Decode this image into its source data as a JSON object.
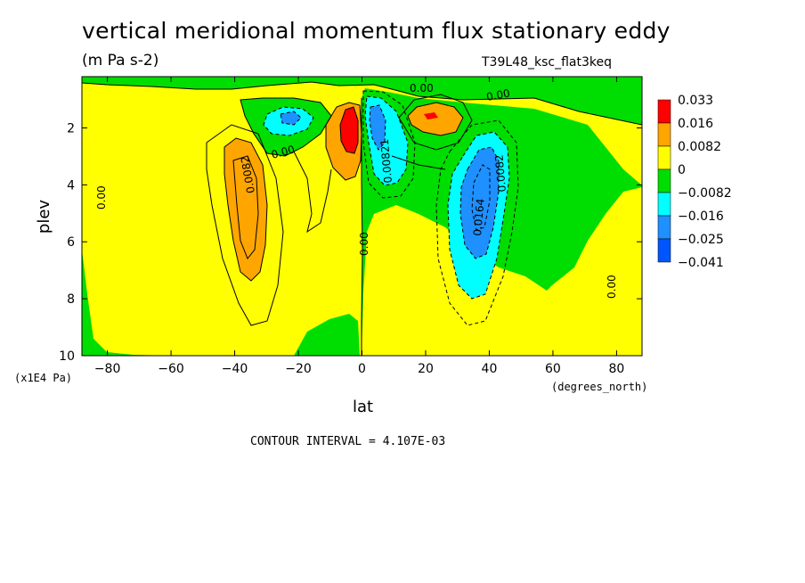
{
  "header": {
    "title": "vertical meridional momentum flux stationary eddy",
    "units": "(m Pa s-2)",
    "run_id": "T39L48_ksc_flat3keq"
  },
  "footer": {
    "contour_interval": "CONTOUR INTERVAL = 4.107E-03"
  },
  "chart_data": {
    "type": "heatmap",
    "title": "vertical meridional momentum flux stationary eddy",
    "subtitle": "(m Pa s-2)",
    "xlabel": "lat",
    "xunit": "(degrees_north)",
    "ylabel": "plev",
    "yunit": "(x1E4 Pa)",
    "xlim": [
      -88,
      88
    ],
    "ylim": [
      10,
      0.2
    ],
    "xticks": [
      -80,
      -60,
      -40,
      -20,
      0,
      20,
      40,
      60,
      80
    ],
    "yticks": [
      2,
      4,
      6,
      8,
      10
    ],
    "legend": {
      "placement": "right",
      "levels": [
        "0.033",
        "0.016",
        "0.0082",
        "0",
        "-0.0082",
        "-0.016",
        "-0.025",
        "-0.041"
      ],
      "colors": [
        "#ff0000",
        "#ffa500",
        "#ffff00",
        "#00dd00",
        "#00ffff",
        "#1e90ff",
        "#0055ff"
      ]
    },
    "features": [
      {
        "type": "max",
        "lat": -35,
        "plev": 5.0,
        "label": "0.0082",
        "level": "orange"
      },
      {
        "type": "max",
        "lat": -5,
        "plev": 2.0,
        "label": "",
        "level": "red"
      },
      {
        "type": "max",
        "lat": 22,
        "plev": 1.5,
        "label": "",
        "level": "red"
      },
      {
        "type": "min",
        "lat": 4,
        "plev": 2.3,
        "label": "0.00821",
        "level": "blue"
      },
      {
        "type": "min",
        "lat": 36,
        "plev": 4.5,
        "label": "0.0164",
        "level": "blue"
      },
      {
        "type": "min",
        "lat": -18,
        "plev": 1.8,
        "label": "",
        "level": "cyan"
      }
    ],
    "contour_labels": [
      "0.00",
      "0.00",
      "0.00",
      "0.00",
      "0.00",
      "0.00",
      "0.00",
      "0.0082",
      "0.00821",
      "0.0164",
      "0.0082"
    ]
  }
}
